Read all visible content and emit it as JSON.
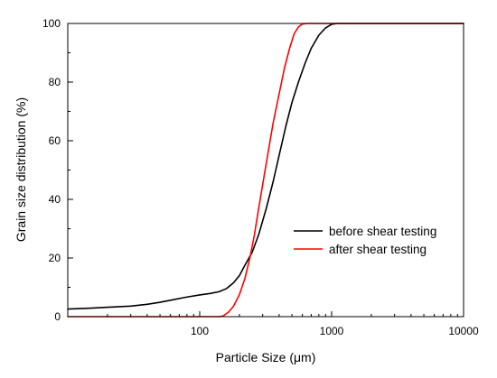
{
  "chart_data": {
    "type": "line",
    "xlabel": "Particle Size (μm)",
    "ylabel": "Grain size distribution (%)",
    "xscale": "log",
    "xlim": [
      10,
      10000
    ],
    "ylim": [
      0,
      100
    ],
    "x_ticks": [
      100,
      1000,
      10000
    ],
    "x_tick_labels": [
      "100",
      "1000",
      "10000"
    ],
    "y_ticks": [
      0,
      20,
      40,
      60,
      80,
      100
    ],
    "y_tick_labels": [
      "0",
      "20",
      "40",
      "60",
      "80",
      "100"
    ],
    "grid": false,
    "legend_position": "center-right",
    "series": [
      {
        "name": "before shear testing",
        "color": "#000000",
        "points": [
          [
            10,
            2.6
          ],
          [
            15,
            2.9
          ],
          [
            20,
            3.2
          ],
          [
            30,
            3.6
          ],
          [
            40,
            4.2
          ],
          [
            50,
            4.9
          ],
          [
            60,
            5.6
          ],
          [
            80,
            6.7
          ],
          [
            100,
            7.4
          ],
          [
            120,
            7.9
          ],
          [
            140,
            8.5
          ],
          [
            160,
            9.6
          ],
          [
            180,
            11.5
          ],
          [
            200,
            14.0
          ],
          [
            220,
            17.5
          ],
          [
            250,
            22.0
          ],
          [
            280,
            28.0
          ],
          [
            320,
            37.0
          ],
          [
            360,
            46.0
          ],
          [
            400,
            55.0
          ],
          [
            450,
            65.0
          ],
          [
            500,
            73.0
          ],
          [
            560,
            80.0
          ],
          [
            630,
            86.5
          ],
          [
            700,
            91.5
          ],
          [
            800,
            96.0
          ],
          [
            900,
            98.5
          ],
          [
            1000,
            99.7
          ],
          [
            1100,
            100
          ],
          [
            10000,
            100
          ]
        ]
      },
      {
        "name": "after shear testing",
        "color": "#ff0000",
        "points": [
          [
            10,
            0
          ],
          [
            140,
            0
          ],
          [
            150,
            0.2
          ],
          [
            165,
            1.5
          ],
          [
            180,
            3.5
          ],
          [
            200,
            7.5
          ],
          [
            220,
            13.0
          ],
          [
            240,
            20.0
          ],
          [
            260,
            28.0
          ],
          [
            280,
            37.0
          ],
          [
            300,
            45.0
          ],
          [
            330,
            56.0
          ],
          [
            360,
            66.0
          ],
          [
            400,
            76.0
          ],
          [
            440,
            85.0
          ],
          [
            480,
            91.5
          ],
          [
            520,
            96.5
          ],
          [
            560,
            98.8
          ],
          [
            600,
            99.8
          ],
          [
            650,
            100
          ],
          [
            10000,
            100
          ]
        ]
      }
    ]
  }
}
